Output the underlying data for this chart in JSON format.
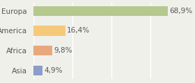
{
  "categories": [
    "Asia",
    "Africa",
    "America",
    "Europa"
  ],
  "values": [
    4.9,
    9.8,
    16.4,
    68.9
  ],
  "labels": [
    "4,9%",
    "9,8%",
    "16,4%",
    "68,9%"
  ],
  "bar_colors": [
    "#8b9dc8",
    "#e8a87c",
    "#f5c97a",
    "#b5c98e"
  ],
  "background_color": "#f0f0eb",
  "xlim": [
    0,
    80
  ],
  "bar_height": 0.5,
  "label_fontsize": 7.5,
  "ytick_fontsize": 7.5,
  "grid_color": "#ffffff",
  "text_color": "#555555"
}
